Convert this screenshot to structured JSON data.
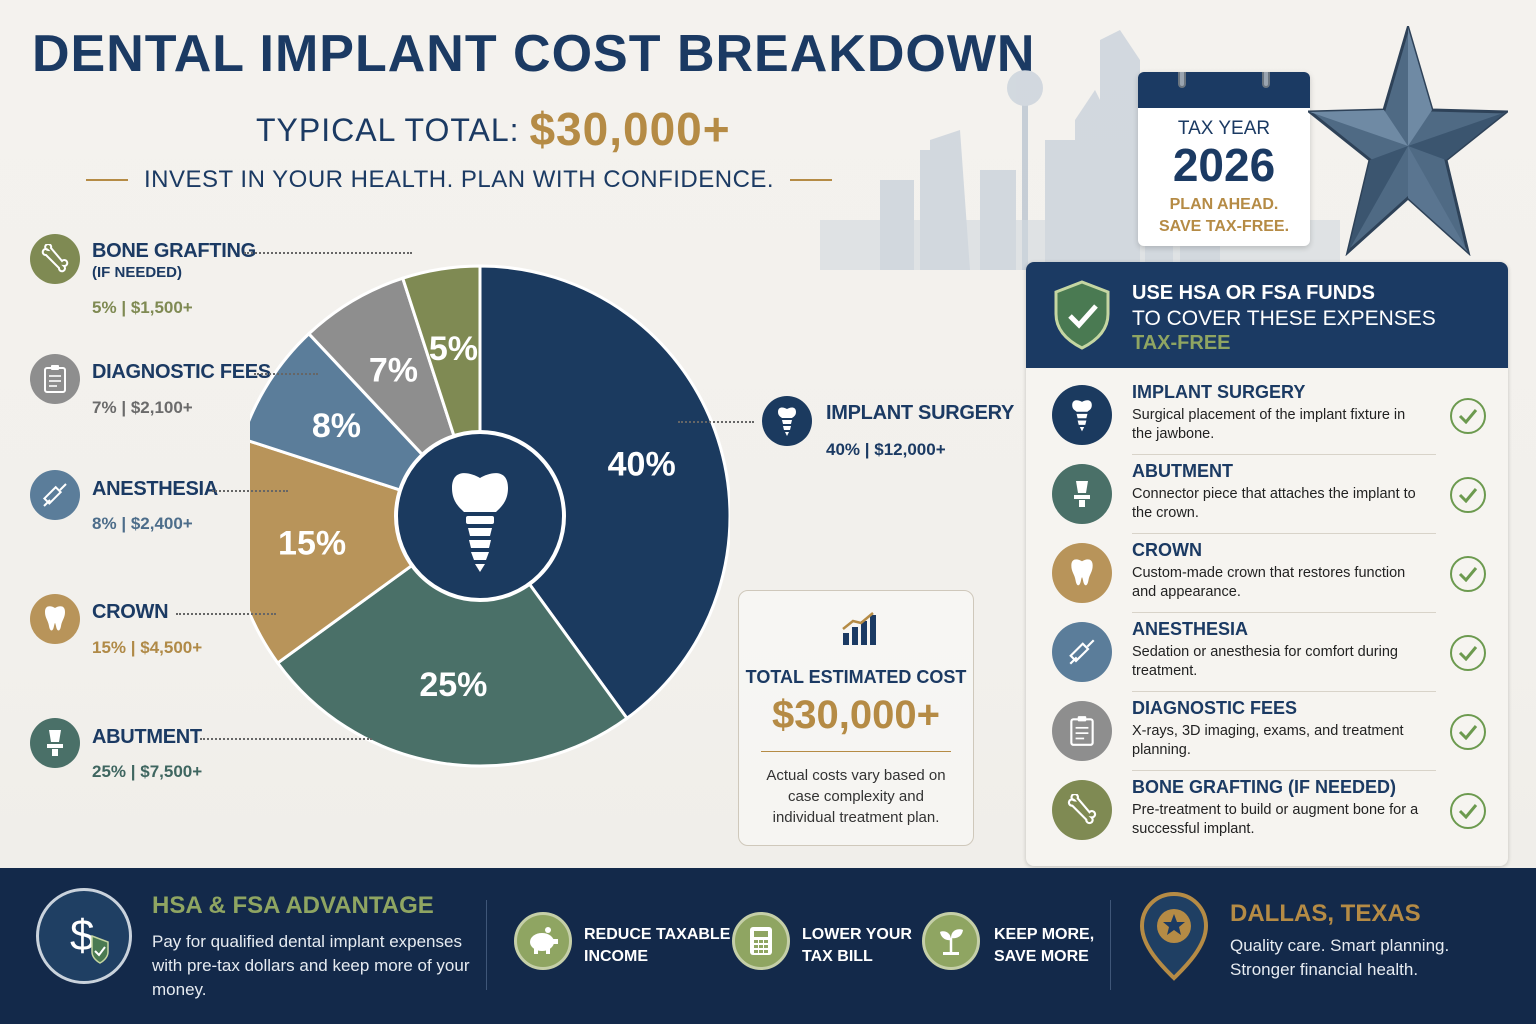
{
  "header": {
    "title": "DENTAL IMPLANT COST BREAKDOWN",
    "typical_label": "TYPICAL TOTAL:",
    "typical_amount": "$30,000+",
    "tagline": "INVEST IN YOUR HEALTH. PLAN WITH CONFIDENCE."
  },
  "calendar": {
    "label": "TAX YEAR",
    "year": "2026",
    "note_line1": "PLAN AHEAD.",
    "note_line2": "SAVE TAX-FREE."
  },
  "chart_data": {
    "type": "pie",
    "slices": [
      {
        "label": "IMPLANT SURGERY",
        "value": 40,
        "amount": "$12,000+",
        "color": "#1b3a5f"
      },
      {
        "label": "ABUTMENT",
        "value": 25,
        "amount": "$7,500+",
        "color": "#4a7068"
      },
      {
        "label": "CROWN",
        "value": 15,
        "amount": "$4,500+",
        "color": "#b8945a"
      },
      {
        "label": "ANESTHESIA",
        "value": 8,
        "amount": "$2,400+",
        "color": "#5b7d9a"
      },
      {
        "label": "DIAGNOSTIC FEES",
        "value": 7,
        "amount": "$2,100+",
        "color": "#8e8e8e"
      },
      {
        "label": "BONE GRAFTING",
        "value": 5,
        "amount": "$1,500+",
        "color": "#7f8a53"
      }
    ],
    "value_labels": [
      "40%",
      "25%",
      "15%",
      "8%",
      "7%",
      "5%"
    ]
  },
  "legend": {
    "bone": {
      "name": "BONE GRAFTING",
      "sub": "(IF NEEDED)",
      "pct": "5%",
      "amount": "$1,500+"
    },
    "diagnostic": {
      "name": "DIAGNOSTIC FEES",
      "pct": "7%",
      "amount": "$2,100+"
    },
    "anesthesia": {
      "name": "ANESTHESIA",
      "pct": "8%",
      "amount": "$2,400+"
    },
    "crown": {
      "name": "CROWN",
      "pct": "15%",
      "amount": "$4,500+"
    },
    "abutment": {
      "name": "ABUTMENT",
      "pct": "25%",
      "amount": "$7,500+"
    },
    "implant": {
      "name": "IMPLANT SURGERY",
      "pct": "40%",
      "amount": "$12,000+"
    },
    "separator": "|"
  },
  "total_box": {
    "label": "TOTAL ESTIMATED COST",
    "amount": "$30,000+",
    "note": "Actual costs vary based on case complexity and individual treatment plan."
  },
  "hsa_panel": {
    "heading_line1": "USE HSA OR FSA FUNDS",
    "heading_line2": "TO COVER THESE EXPENSES",
    "heading_line3": "TAX-FREE",
    "items": [
      {
        "name": "IMPLANT SURGERY",
        "desc": "Surgical placement of the implant fixture in the jawbone."
      },
      {
        "name": "ABUTMENT",
        "desc": "Connector piece that attaches the implant to the crown."
      },
      {
        "name": "CROWN",
        "desc": "Custom-made crown that restores function and appearance."
      },
      {
        "name": "ANESTHESIA",
        "desc": "Sedation or anesthesia for comfort during treatment."
      },
      {
        "name": "DIAGNOSTIC FEES",
        "desc": "X-rays, 3D imaging, exams, and treatment planning."
      },
      {
        "name": "BONE GRAFTING (IF NEEDED)",
        "desc": "Pre-treatment to build or augment bone for a successful implant."
      }
    ]
  },
  "footer": {
    "advantage_title": "HSA & FSA ADVANTAGE",
    "advantage_text": "Pay for qualified dental implant expenses with pre-tax dollars and keep more of your money.",
    "benefit1_line1": "REDUCE TAXABLE",
    "benefit1_line2": "INCOME",
    "benefit2_line1": "LOWER YOUR",
    "benefit2_line2": "TAX BILL",
    "benefit3_line1": "KEEP MORE,",
    "benefit3_line2": "SAVE MORE",
    "location_title": "DALLAS, TEXAS",
    "location_line1": "Quality care. Smart planning.",
    "location_line2": "Stronger financial health."
  },
  "colors": {
    "navy": "#1b3a63",
    "gold": "#b58b45",
    "olive": "#8fa562",
    "teal": "#4a7068",
    "slate": "#5b7d9a",
    "gray": "#8e8e8e"
  }
}
